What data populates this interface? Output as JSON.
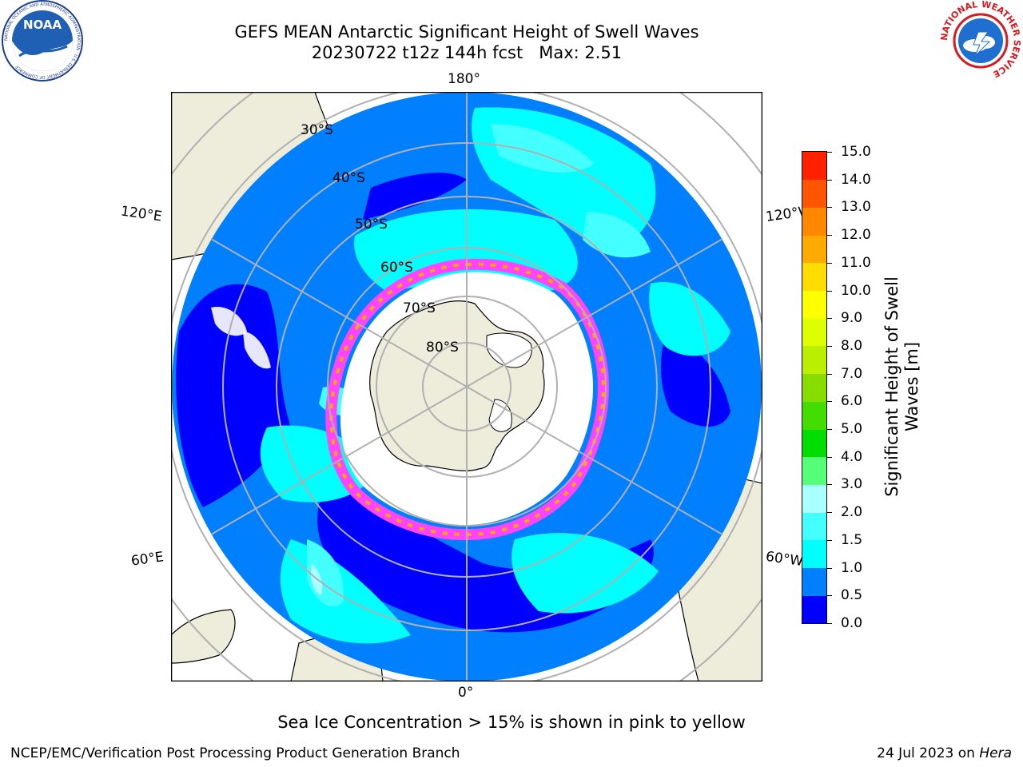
{
  "header": {
    "title_line1": "GEFS MEAN Antarctic Significant Height of Swell Waves",
    "title_line2": "20230722 t12z 144h fcst   Max: 2.51"
  },
  "logos": {
    "left": "noaa-logo",
    "left_text": "NOAA",
    "left_ring_text": "NATIONAL OCEANIC AND ATMOSPHERIC ADMINISTRATION · U.S. DEPARTMENT OF COMMERCE",
    "right": "nws-logo",
    "right_ring_text": "NATIONAL WEATHER SERVICE"
  },
  "map": {
    "projection": "south-polar-stereographic",
    "longitude_labels": {
      "top": "180°",
      "bottom": "0°",
      "left_upper": "120°E",
      "left_lower": "60°E",
      "right_upper": "120°W",
      "right_lower": "60°W"
    },
    "latitude_labels": [
      "30°S",
      "40°S",
      "50°S",
      "60°S",
      "70°S",
      "80°S"
    ],
    "colors": {
      "land": "#eeeddc",
      "sea_ice_interior": "#ffffff",
      "sea_ice_edge": [
        "#ff44ff",
        "#ffaa00",
        "#ffdd00"
      ],
      "graticule": "#b0b0b0"
    }
  },
  "colorbar": {
    "label": "Significant Height of Swell\nWaves [m]",
    "ticks": [
      "0.0",
      "0.5",
      "1.0",
      "1.5",
      "2.0",
      "3.0",
      "4.0",
      "5.0",
      "6.0",
      "7.0",
      "8.0",
      "9.0",
      "10.0",
      "11.0",
      "12.0",
      "13.0",
      "14.0",
      "15.0"
    ],
    "colors": [
      "#0000ff",
      "#0080ff",
      "#00ffff",
      "#44ffff",
      "#aaffff",
      "#55ff77",
      "#00dd00",
      "#44dd00",
      "#88dd00",
      "#bbee00",
      "#ddff00",
      "#ffff00",
      "#ffdd00",
      "#ffaa00",
      "#ff8800",
      "#ff5500",
      "#ff2200"
    ]
  },
  "footer": {
    "note": "Sea Ice Concentration > 15% is shown in pink to yellow",
    "credit_left": "NCEP/EMC/Verification Post Processing Product Generation Branch",
    "credit_right_prefix": "24 Jul 2023 on ",
    "credit_right_host": "Hera"
  }
}
